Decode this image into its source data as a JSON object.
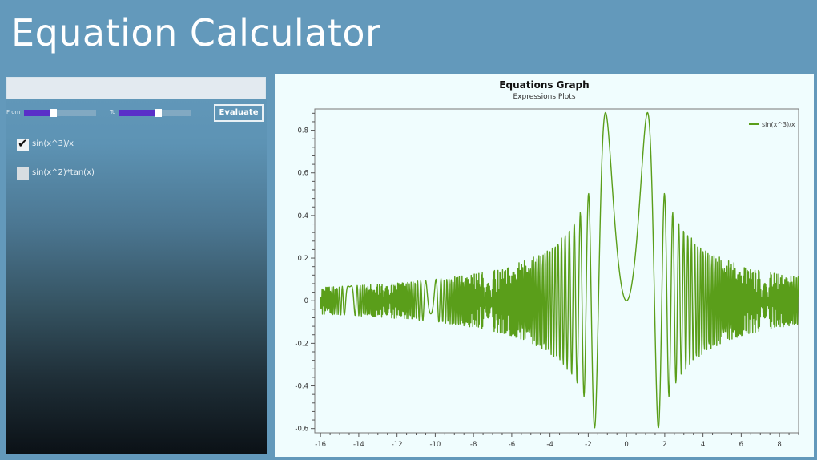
{
  "app": {
    "title": "Equation Calculator"
  },
  "controls": {
    "expression_input": {
      "value": "",
      "placeholder": ""
    },
    "from_label": "From",
    "to_label": "To",
    "from_slider_percent": 41,
    "to_slider_percent": 55,
    "evaluate_label": "Evaluate",
    "accent_color": "#5a2fc8"
  },
  "equations": [
    {
      "label": "sin(x^3)/x",
      "checked": true
    },
    {
      "label": "sin(x^2)*tan(x)",
      "checked": false
    }
  ],
  "chart_data": {
    "type": "line",
    "title": "Equations Graph",
    "subtitle": "Expressions Plots",
    "xlabel": "",
    "ylabel": "",
    "xlim": [
      -16.3,
      9.0
    ],
    "ylim": [
      -0.62,
      0.9
    ],
    "x_ticks": [
      -16,
      -14,
      -12,
      -10,
      -8,
      -6,
      -4,
      -2,
      0,
      2,
      4,
      6,
      8
    ],
    "y_ticks": [
      -0.6,
      -0.4,
      -0.2,
      0,
      0.2,
      0.4,
      0.6,
      0.8
    ],
    "grid": false,
    "legend_position": "top-right",
    "series": [
      {
        "name": "sin(x^3)/x",
        "color": "#5a9e1a",
        "function": "sin(x^3)/x",
        "x_range": [
          -16,
          9
        ],
        "sample_step": 0.02,
        "key_points": [
          {
            "x": -1.15,
            "y": 0.88
          },
          {
            "x": 1.15,
            "y": 0.88
          },
          {
            "x": -1.65,
            "y": -0.59
          },
          {
            "x": 1.65,
            "y": -0.59
          },
          {
            "x": 0,
            "y": 0
          },
          {
            "x": -2.2,
            "y": 0.48
          },
          {
            "x": 2.2,
            "y": 0.48
          }
        ],
        "envelope_note": "amplitude ~0.07 near x=-16 and x=9"
      }
    ]
  }
}
